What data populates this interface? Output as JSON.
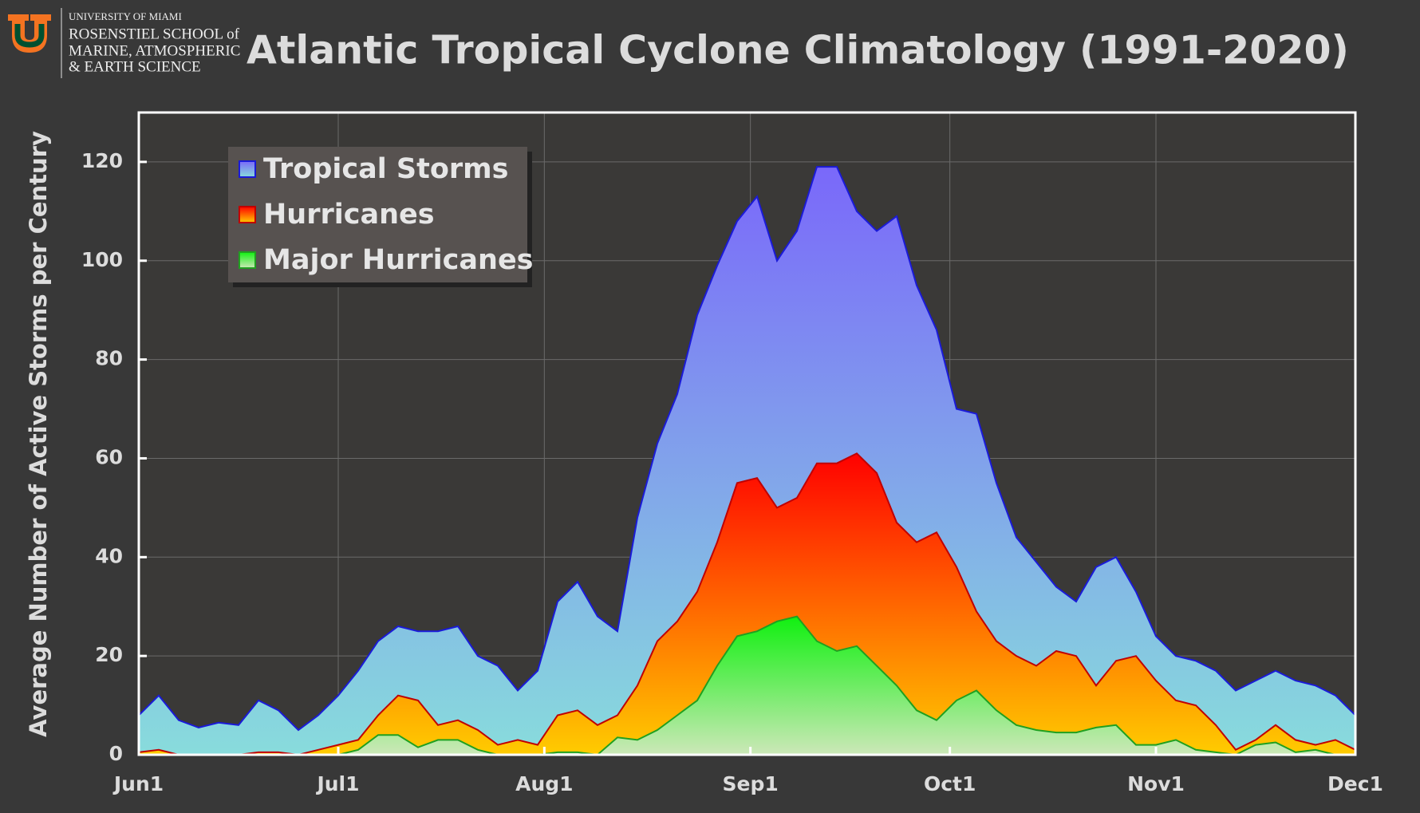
{
  "logo_text": [
    "UNIVERSITY OF MIAMI",
    "ROSENSTIEL SCHOOL of",
    "MARINE, ATMOSPHERIC",
    "& EARTH SCIENCE"
  ],
  "chart_data": {
    "type": "area",
    "title": "Atlantic Tropical Cyclone Climatology (1991-2020)",
    "ylabel": "Average Number of Active Storms per Century",
    "x": [
      0,
      3,
      6,
      9,
      12,
      15,
      18,
      21,
      24,
      27,
      30,
      33,
      36,
      39,
      42,
      45,
      48,
      51,
      54,
      57,
      60,
      63,
      66,
      69,
      72,
      75,
      78,
      81,
      84,
      87,
      90,
      93,
      96,
      99,
      102,
      105,
      108,
      111,
      114,
      117,
      120,
      123,
      126,
      129,
      132,
      135,
      138,
      141,
      144,
      147,
      150,
      153,
      156,
      159,
      162,
      165,
      168,
      171,
      174,
      177,
      180,
      183
    ],
    "series": [
      {
        "name": "Tropical Storms",
        "color": "#1a1ad8",
        "values": [
          8,
          12,
          7,
          5.5,
          6.5,
          6,
          11,
          9,
          5,
          8,
          12,
          17,
          23,
          26,
          25,
          25,
          26,
          20,
          18,
          13,
          17,
          31,
          35,
          28,
          25,
          48,
          63,
          73,
          89,
          99,
          108,
          113,
          100,
          106,
          119,
          119,
          110,
          106,
          109,
          95,
          86,
          70,
          69,
          55,
          44,
          39,
          34,
          31,
          38,
          40,
          33,
          24,
          20,
          19,
          17,
          13,
          15,
          17,
          15,
          14,
          12,
          8
        ]
      },
      {
        "name": "Hurricanes",
        "color": "#c00000",
        "values": [
          0.5,
          1,
          0,
          0,
          0,
          0,
          0.5,
          0.5,
          0,
          1,
          2,
          3,
          8,
          12,
          11,
          6,
          7,
          5,
          2,
          3,
          2,
          8,
          9,
          6,
          8,
          14,
          23,
          27,
          33,
          43,
          55,
          56,
          50,
          52,
          59,
          59,
          61,
          57,
          47,
          43,
          45,
          38,
          29,
          23,
          20,
          18,
          21,
          20,
          14,
          19,
          20,
          15,
          11,
          10,
          6,
          1,
          3,
          6,
          3,
          2,
          3,
          1
        ]
      },
      {
        "name": "Major Hurricanes",
        "color": "#20a020",
        "values": [
          0,
          0,
          0,
          0,
          0,
          0,
          0,
          0,
          0,
          0,
          0,
          1,
          4,
          4,
          1.5,
          3,
          3,
          1,
          0,
          0,
          0,
          0.5,
          0.5,
          0,
          3.5,
          3,
          5,
          8,
          11,
          18,
          24,
          25,
          27,
          28,
          23,
          21,
          22,
          18,
          14,
          9,
          7,
          11,
          13,
          9,
          6,
          5,
          4.5,
          4.5,
          5.5,
          6,
          2,
          2,
          3,
          1,
          0.5,
          0,
          2,
          2.5,
          0.5,
          1,
          0,
          0
        ]
      }
    ],
    "xlim": [
      0,
      183
    ],
    "xticks": [
      {
        "value": 0,
        "label": "Jun1"
      },
      {
        "value": 30,
        "label": "Jul1"
      },
      {
        "value": 61,
        "label": "Aug1"
      },
      {
        "value": 92,
        "label": "Sep1"
      },
      {
        "value": 122,
        "label": "Oct1"
      },
      {
        "value": 153,
        "label": "Nov1"
      },
      {
        "value": 183,
        "label": "Dec1"
      }
    ],
    "ylim": [
      0,
      130
    ],
    "yticks": [
      0,
      20,
      40,
      60,
      80,
      100,
      120
    ],
    "grid": true,
    "legend": "upper left"
  }
}
